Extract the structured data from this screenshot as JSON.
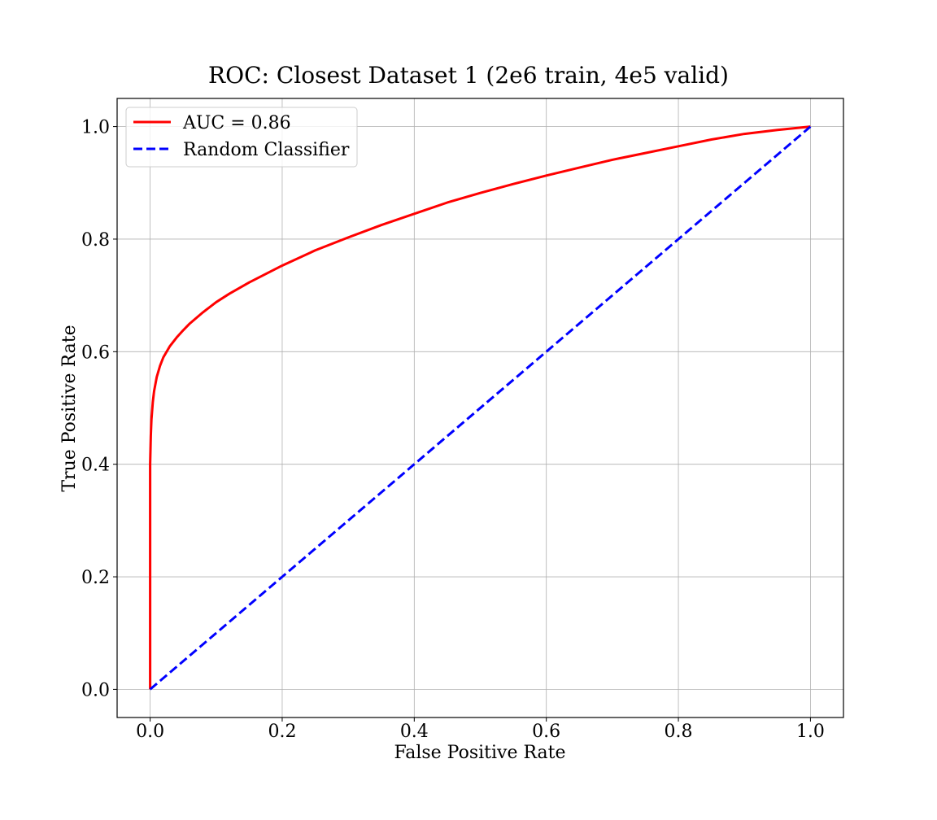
{
  "chart_data": {
    "type": "line",
    "title": "ROC: Closest Dataset 1 (2e6 train, 4e5 valid)",
    "xlabel": "False Positive Rate",
    "ylabel": "True Positive Rate",
    "xlim": [
      -0.05,
      1.05
    ],
    "ylim": [
      -0.05,
      1.05
    ],
    "xticks": [
      0.0,
      0.2,
      0.4,
      0.6,
      0.8,
      1.0
    ],
    "yticks": [
      0.0,
      0.2,
      0.4,
      0.6,
      0.8,
      1.0
    ],
    "xtick_labels": [
      "0.0",
      "0.2",
      "0.4",
      "0.6",
      "0.8",
      "1.0"
    ],
    "ytick_labels": [
      "0.0",
      "0.2",
      "0.4",
      "0.6",
      "0.8",
      "1.0"
    ],
    "grid": true,
    "legend_position": "top-left",
    "series": [
      {
        "name": "AUC = 0.86",
        "color": "#ff0000",
        "style": "solid",
        "x": [
          0.0,
          0.0,
          0.001,
          0.002,
          0.004,
          0.006,
          0.01,
          0.015,
          0.02,
          0.03,
          0.04,
          0.05,
          0.06,
          0.08,
          0.1,
          0.12,
          0.15,
          0.2,
          0.25,
          0.3,
          0.35,
          0.4,
          0.45,
          0.5,
          0.55,
          0.6,
          0.65,
          0.7,
          0.75,
          0.8,
          0.85,
          0.9,
          0.95,
          1.0
        ],
        "y": [
          0.0,
          0.4,
          0.45,
          0.48,
          0.51,
          0.53,
          0.555,
          0.575,
          0.59,
          0.61,
          0.625,
          0.638,
          0.65,
          0.67,
          0.688,
          0.703,
          0.723,
          0.753,
          0.78,
          0.803,
          0.825,
          0.845,
          0.865,
          0.882,
          0.898,
          0.913,
          0.927,
          0.941,
          0.953,
          0.965,
          0.977,
          0.987,
          0.994,
          1.0
        ]
      },
      {
        "name": "Random Classifier",
        "color": "#0000ff",
        "style": "dashed",
        "x": [
          0.0,
          1.0
        ],
        "y": [
          0.0,
          1.0
        ]
      }
    ]
  }
}
